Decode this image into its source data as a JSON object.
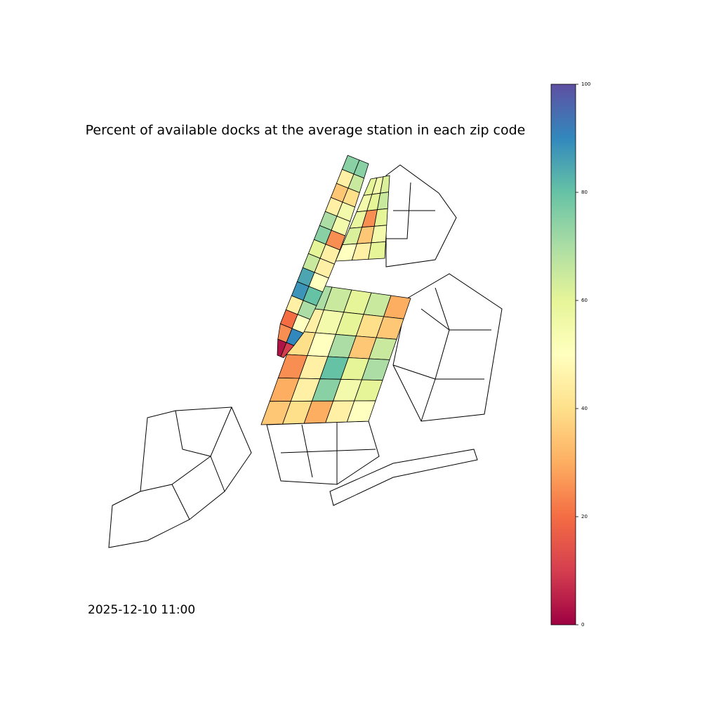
{
  "chart_data": {
    "type": "choropleth",
    "title": "Percent of available docks at the average station in each zip code",
    "annotation": "2025-12-10 11:00",
    "colormap": "Spectral",
    "clim": [
      0,
      100
    ],
    "cticks": [
      0,
      20,
      40,
      60,
      80,
      100
    ],
    "values": [
      75,
      75,
      45,
      65,
      35,
      40,
      45,
      55,
      70,
      55,
      75,
      25,
      60,
      45,
      65,
      45,
      85,
      50,
      88,
      80,
      45,
      70,
      20,
      50,
      25,
      90,
      3,
      10,
      60,
      55,
      62,
      55,
      60,
      65,
      58,
      25,
      60,
      62,
      35,
      55,
      50,
      45,
      60,
      70,
      65,
      60,
      65,
      30,
      45,
      55,
      60,
      40,
      35,
      40,
      50,
      70,
      35,
      65,
      25,
      45,
      80,
      60,
      70,
      30,
      45,
      75,
      55,
      60,
      35,
      40,
      30,
      45,
      50
    ]
  }
}
